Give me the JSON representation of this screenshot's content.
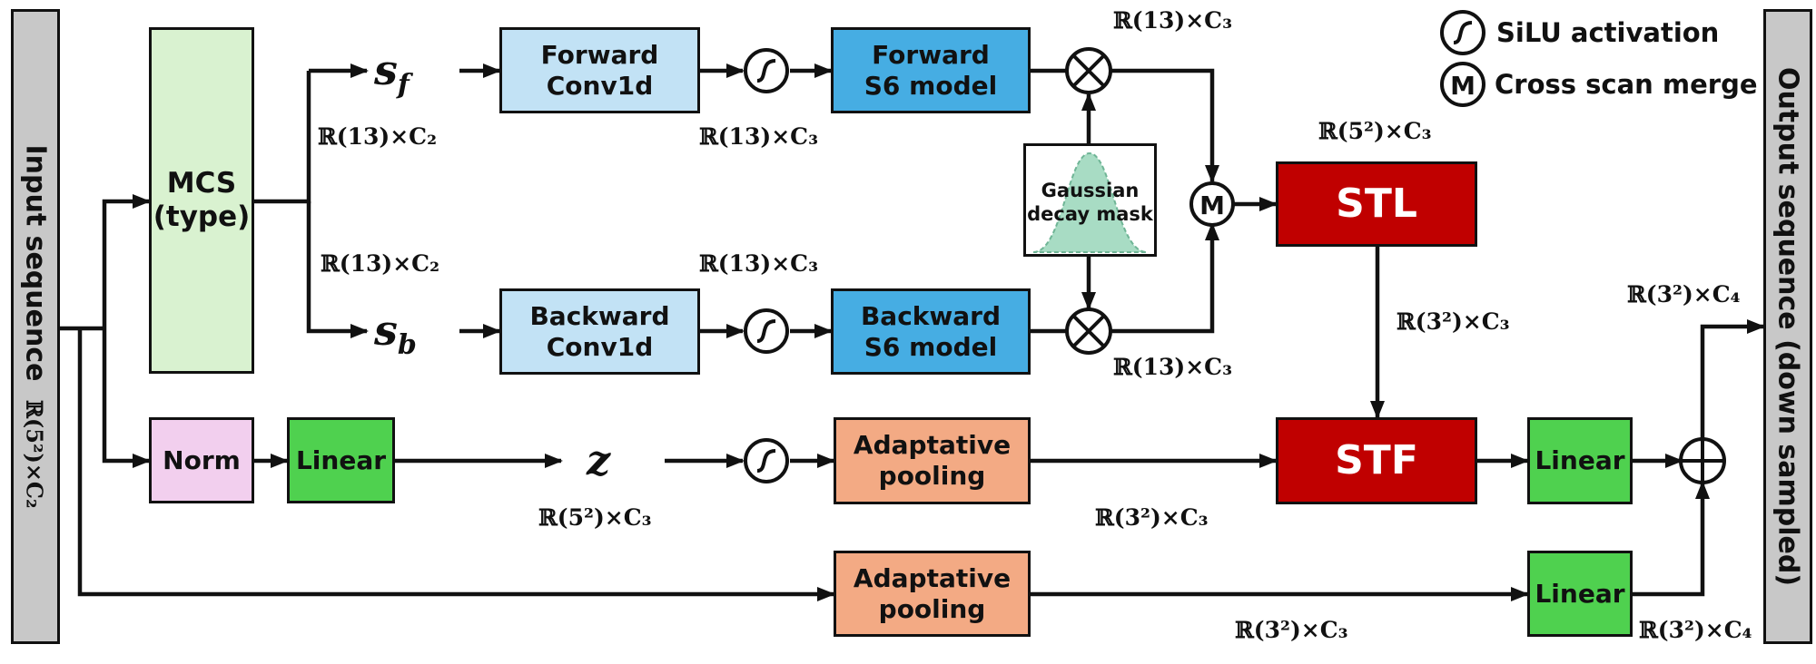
{
  "input_sequence": {
    "label": "Input sequence",
    "dim": "ℝ(5²)×C₂"
  },
  "output_sequence": {
    "label": "Output sequence (down sampled)"
  },
  "mcs": {
    "line1": "MCS",
    "line2": "(type)"
  },
  "s_f": {
    "base": "s",
    "sub": "f"
  },
  "s_b": {
    "base": "s",
    "sub": "b"
  },
  "z": {
    "label": "z"
  },
  "forward_conv": {
    "line1": "Forward",
    "line2": "Conv1d"
  },
  "backward_conv": {
    "line1": "Backward",
    "line2": "Conv1d"
  },
  "forward_s6": {
    "line1": "Forward",
    "line2": "S6 model"
  },
  "backward_s6": {
    "line1": "Backward",
    "line2": "S6 model"
  },
  "gaussian_mask": {
    "line1": "Gaussian",
    "line2": "decay mask"
  },
  "stl": {
    "label": "STL"
  },
  "stf": {
    "label": "STF"
  },
  "norm": {
    "label": "Norm"
  },
  "linear_z": {
    "label": "Linear"
  },
  "linear_stf": {
    "label": "Linear"
  },
  "linear_skip": {
    "label": "Linear"
  },
  "adaptive_pool_z": {
    "line1": "Adaptative",
    "line2": "pooling"
  },
  "adaptive_pool_skip": {
    "line1": "Adaptative",
    "line2": "pooling"
  },
  "legend": {
    "silu": "SiLU activation",
    "merge": "Cross scan merge",
    "merge_symbol": "M"
  },
  "dims": {
    "sf_top": "ℝ(13)×C₂",
    "sb_top": "ℝ(13)×C₂",
    "fwd_silu": "ℝ(13)×C₃",
    "bwd_silu": "ℝ(13)×C₃",
    "fwd_mult": "ℝ(13)×C₃",
    "bwd_mult": "ℝ(13)×C₃",
    "stl_top": "ℝ(5²)×C₃",
    "stl_stf": "ℝ(3²)×C₃",
    "z_below": "ℝ(5²)×C₃",
    "pool_z": "ℝ(3²)×C₃",
    "output_in": "ℝ(3²)×C₄",
    "skip_pool": "ℝ(3²)×C₃",
    "skip_linear": "ℝ(3²)×C₄"
  },
  "colors": {
    "mcs": "#d9f2d0",
    "conv": "#c2e2f5",
    "s6": "#46ade3",
    "stl": "#c00000",
    "stf": "#c00000",
    "norm": "#f2cfee",
    "linear": "#4fd14f",
    "pooling": "#f3aa84",
    "side": "#c8c8c8",
    "gaussian": "#a8dcc4"
  }
}
